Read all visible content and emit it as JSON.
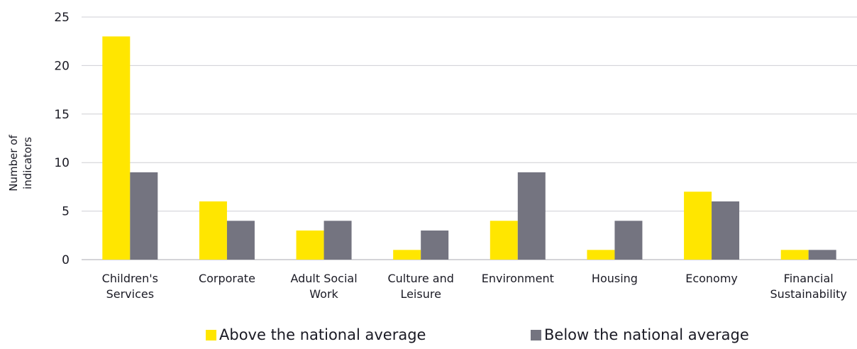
{
  "chart_data": {
    "type": "bar",
    "title": "",
    "ylabel": [
      "Number of",
      "indicators"
    ],
    "xlabel": "",
    "ylim": [
      0,
      25
    ],
    "yticks": [
      0,
      5,
      10,
      15,
      20,
      25
    ],
    "grid": true,
    "legend_position": "bottom",
    "categories": [
      [
        "Children's",
        "Services"
      ],
      [
        "Corporate"
      ],
      [
        "Adult Social",
        "Work"
      ],
      [
        "Culture and",
        "Leisure"
      ],
      [
        "Environment"
      ],
      [
        "Housing"
      ],
      [
        "Economy"
      ],
      [
        "Financial",
        "Sustainability"
      ]
    ],
    "series": [
      {
        "name": "Above the national average",
        "color": "#FFE600",
        "values": [
          23,
          6,
          3,
          1,
          4,
          1,
          7,
          1
        ]
      },
      {
        "name": "Below the national average",
        "color": "#747480",
        "values": [
          9,
          4,
          4,
          3,
          9,
          4,
          6,
          1
        ]
      }
    ]
  }
}
